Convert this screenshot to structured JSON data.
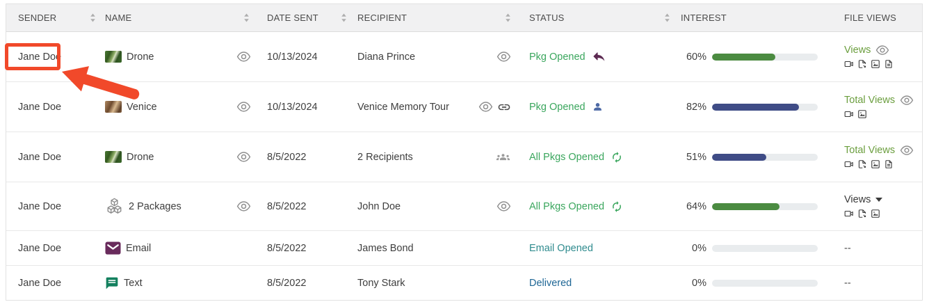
{
  "colors": {
    "status_green": "#3aa65d",
    "status_teal": "#2f8b8e",
    "status_blue": "#1e6695",
    "views_link_green": "#6b9e3e",
    "text_dark": "#3a3a3a",
    "bar_green": "#4b8b41",
    "bar_navy": "#3f4c86",
    "bar_track": "#e9ecee",
    "annotation_red": "#f1492a",
    "reply_plum": "#5d2a52",
    "person_blue": "#4d69a5",
    "email_plum": "#692b5c",
    "chat_green": "#13805e"
  },
  "table": {
    "columns": [
      {
        "label": "SENDER",
        "sortable": true
      },
      {
        "label": "NAME",
        "sortable": true
      },
      {
        "label": "DATE SENT",
        "sortable": true
      },
      {
        "label": "RECIPIENT",
        "sortable": true
      },
      {
        "label": "STATUS",
        "sortable": true
      },
      {
        "label": "INTEREST",
        "sortable": false
      },
      {
        "label": "FILE VIEWS",
        "sortable": false
      }
    ],
    "rows": [
      {
        "sender": "Jane Doe",
        "highlighted": true,
        "name": {
          "icon": "thumb-drone",
          "label": "Drone",
          "preview_eye": true
        },
        "date_sent": "10/13/2024",
        "recipient": {
          "label": "Diana Prince",
          "icons": [
            "eye"
          ]
        },
        "status": {
          "label": "Pkg Opened",
          "color_key": "status_green",
          "icon": "reply"
        },
        "interest": {
          "label": "60%",
          "percent": 60,
          "bar_key": "bar_green"
        },
        "file_views": {
          "kind": "link",
          "label": "Views",
          "color_key": "views_link_green",
          "trailing_icon": "eye",
          "file_icons": [
            "video",
            "file",
            "image",
            "document"
          ]
        }
      },
      {
        "sender": "Jane Doe",
        "highlighted": false,
        "name": {
          "icon": "thumb-venice",
          "label": "Venice",
          "preview_eye": true
        },
        "date_sent": "10/13/2024",
        "recipient": {
          "label": "Venice Memory Tour",
          "icons": [
            "eye",
            "link"
          ]
        },
        "status": {
          "label": "Pkg Opened",
          "color_key": "status_green",
          "icon": "person"
        },
        "interest": {
          "label": "82%",
          "percent": 82,
          "bar_key": "bar_navy"
        },
        "file_views": {
          "kind": "link",
          "label": "Total Views",
          "color_key": "views_link_green",
          "trailing_icon": "eye",
          "file_icons": [
            "video",
            "image"
          ]
        }
      },
      {
        "sender": "Jane Doe",
        "highlighted": false,
        "name": {
          "icon": "thumb-drone",
          "label": "Drone",
          "preview_eye": true
        },
        "date_sent": "8/5/2022",
        "recipient": {
          "label": "2 Recipients",
          "icons": [
            "groups"
          ]
        },
        "status": {
          "label": "All Pkgs Opened",
          "color_key": "status_green",
          "icon": "sync"
        },
        "interest": {
          "label": "51%",
          "percent": 51,
          "bar_key": "bar_navy"
        },
        "file_views": {
          "kind": "link",
          "label": "Total Views",
          "color_key": "views_link_green",
          "trailing_icon": "eye",
          "file_icons": [
            "video",
            "file",
            "image",
            "document"
          ]
        }
      },
      {
        "sender": "Jane Doe",
        "highlighted": false,
        "name": {
          "icon": "cubes",
          "label": "2 Packages",
          "preview_eye": true
        },
        "date_sent": "8/5/2022",
        "recipient": {
          "label": "John Doe",
          "icons": [
            "eye"
          ]
        },
        "status": {
          "label": "All Pkgs Opened",
          "color_key": "status_green",
          "icon": "sync"
        },
        "interest": {
          "label": "64%",
          "percent": 64,
          "bar_key": "bar_green"
        },
        "file_views": {
          "kind": "dropdown",
          "label": "Views",
          "color_key": "text_dark",
          "trailing_icon": "caret",
          "file_icons": [
            "video",
            "file",
            "image"
          ]
        }
      },
      {
        "sender": "Jane Doe",
        "highlighted": false,
        "name": {
          "icon": "envelope",
          "label": "Email",
          "preview_eye": false
        },
        "date_sent": "8/5/2022",
        "recipient": {
          "label": "James Bond",
          "icons": []
        },
        "status": {
          "label": "Email Opened",
          "color_key": "status_teal",
          "icon": null
        },
        "interest": {
          "label": "0%",
          "percent": 0,
          "bar_key": "bar_green"
        },
        "file_views": {
          "kind": "dash",
          "label": "--"
        }
      },
      {
        "sender": "Jane Doe",
        "highlighted": false,
        "name": {
          "icon": "chat",
          "label": "Text",
          "preview_eye": false
        },
        "date_sent": "8/5/2022",
        "recipient": {
          "label": "Tony Stark",
          "icons": []
        },
        "status": {
          "label": "Delivered",
          "color_key": "status_blue",
          "icon": null
        },
        "interest": {
          "label": "0%",
          "percent": 0,
          "bar_key": "bar_green"
        },
        "file_views": {
          "kind": "dash",
          "label": "--"
        }
      }
    ]
  },
  "annotation": {
    "highlighted_value": "Jane Doe",
    "color": "#f1492a"
  }
}
